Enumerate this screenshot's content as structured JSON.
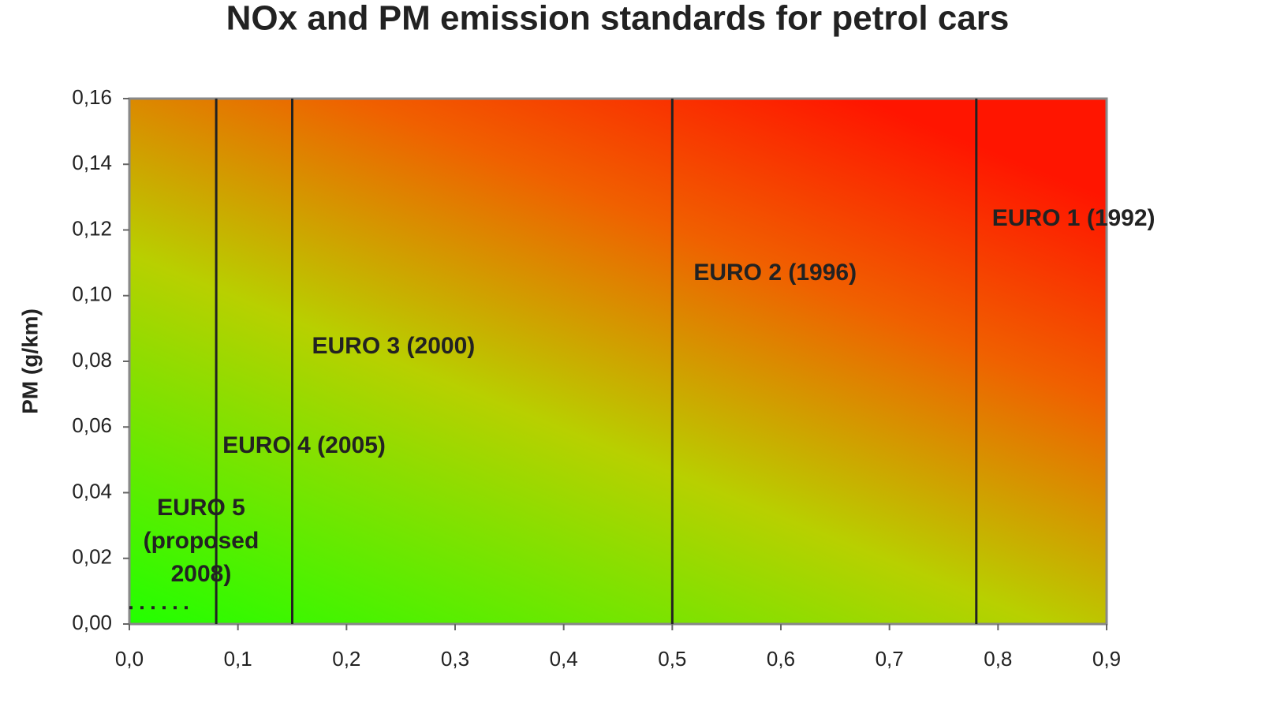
{
  "chart_data": {
    "type": "region",
    "title": "NOx and PM emission standards for petrol cars",
    "y_label": "PM (g/km)",
    "xlim": [
      0,
      0.9
    ],
    "ylim": [
      0,
      0.16
    ],
    "xticks": [
      {
        "value": 0,
        "label": "0,0"
      },
      {
        "value": 0.1,
        "label": "0,1"
      },
      {
        "value": 0.2,
        "label": "0,2"
      },
      {
        "value": 0.3,
        "label": "0,3"
      },
      {
        "value": 0.4,
        "label": "0,4"
      },
      {
        "value": 0.5,
        "label": "0,5"
      },
      {
        "value": 0.6,
        "label": "0,6"
      },
      {
        "value": 0.7,
        "label": "0,7"
      },
      {
        "value": 0.8,
        "label": "0,8"
      },
      {
        "value": 0.9,
        "label": "0,9"
      }
    ],
    "yticks": [
      {
        "value": 0,
        "label": "0,00"
      },
      {
        "value": 0.02,
        "label": "0,02"
      },
      {
        "value": 0.04,
        "label": "0,04"
      },
      {
        "value": 0.06,
        "label": "0,06"
      },
      {
        "value": 0.08,
        "label": "0,08"
      },
      {
        "value": 0.1,
        "label": "0,10"
      },
      {
        "value": 0.12,
        "label": "0,12"
      },
      {
        "value": 0.14,
        "label": "0,14"
      },
      {
        "value": 0.16,
        "label": "0,16"
      }
    ],
    "line_color": "#222222",
    "standards": [
      {
        "label_lines": [
          "EURO 1 (1992)"
        ],
        "nox": 0.78
      },
      {
        "label_lines": [
          "EURO 2 (1996)"
        ],
        "nox": 0.5
      },
      {
        "label_lines": [
          "EURO 3 (2000)"
        ],
        "nox": 0.15
      },
      {
        "label_lines": [
          "EURO 4 (2005)"
        ],
        "nox": 0.08
      },
      {
        "label_lines": [
          "EURO 5",
          "(proposed",
          "2008)"
        ],
        "nox": 0.06,
        "pm": 0.005
      }
    ]
  }
}
